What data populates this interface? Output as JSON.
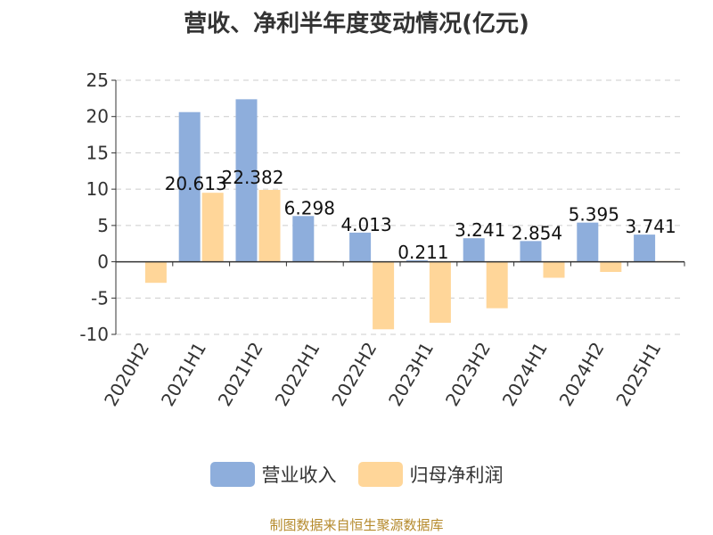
{
  "title": "营收、净利半年度变动情况(亿元)",
  "source_text": "制图数据来自恒生聚源数据库",
  "colors": {
    "revenue": "#8eaedc",
    "profit": "#ffd699",
    "grid": "#cccccc",
    "axis": "#333333"
  },
  "legend": [
    {
      "name": "营业收入",
      "color": "#8eaedc"
    },
    {
      "name": "归母净利润",
      "color": "#ffd699"
    }
  ],
  "chart_data": {
    "type": "bar",
    "title": "营收、净利半年度变动情况(亿元)",
    "xlabel": "",
    "ylabel": "",
    "ylim": [
      -10,
      25
    ],
    "yticks": [
      25,
      20,
      15,
      10,
      5,
      0,
      -5,
      -10
    ],
    "grid": true,
    "legend_position": "bottom",
    "categories": [
      "2020H2",
      "2021H1",
      "2021H2",
      "2022H1",
      "2022H2",
      "2023H1",
      "2023H2",
      "2024H1",
      "2024H2",
      "2025H1"
    ],
    "series": [
      {
        "name": "营业收入",
        "values": [
          null,
          20.613,
          22.382,
          6.298,
          4.013,
          0.211,
          3.241,
          2.854,
          5.395,
          3.741
        ]
      },
      {
        "name": "归母净利润",
        "values": [
          -2.9,
          9.5,
          9.9,
          0.1,
          -9.3,
          -8.4,
          -6.4,
          -2.2,
          -1.4,
          0.1
        ]
      }
    ],
    "data_labels": [
      "",
      "20.613",
      "22.382",
      "6.298",
      "4.013",
      "0.211",
      "3.241",
      "2.854",
      "5.395",
      "3.741"
    ]
  }
}
